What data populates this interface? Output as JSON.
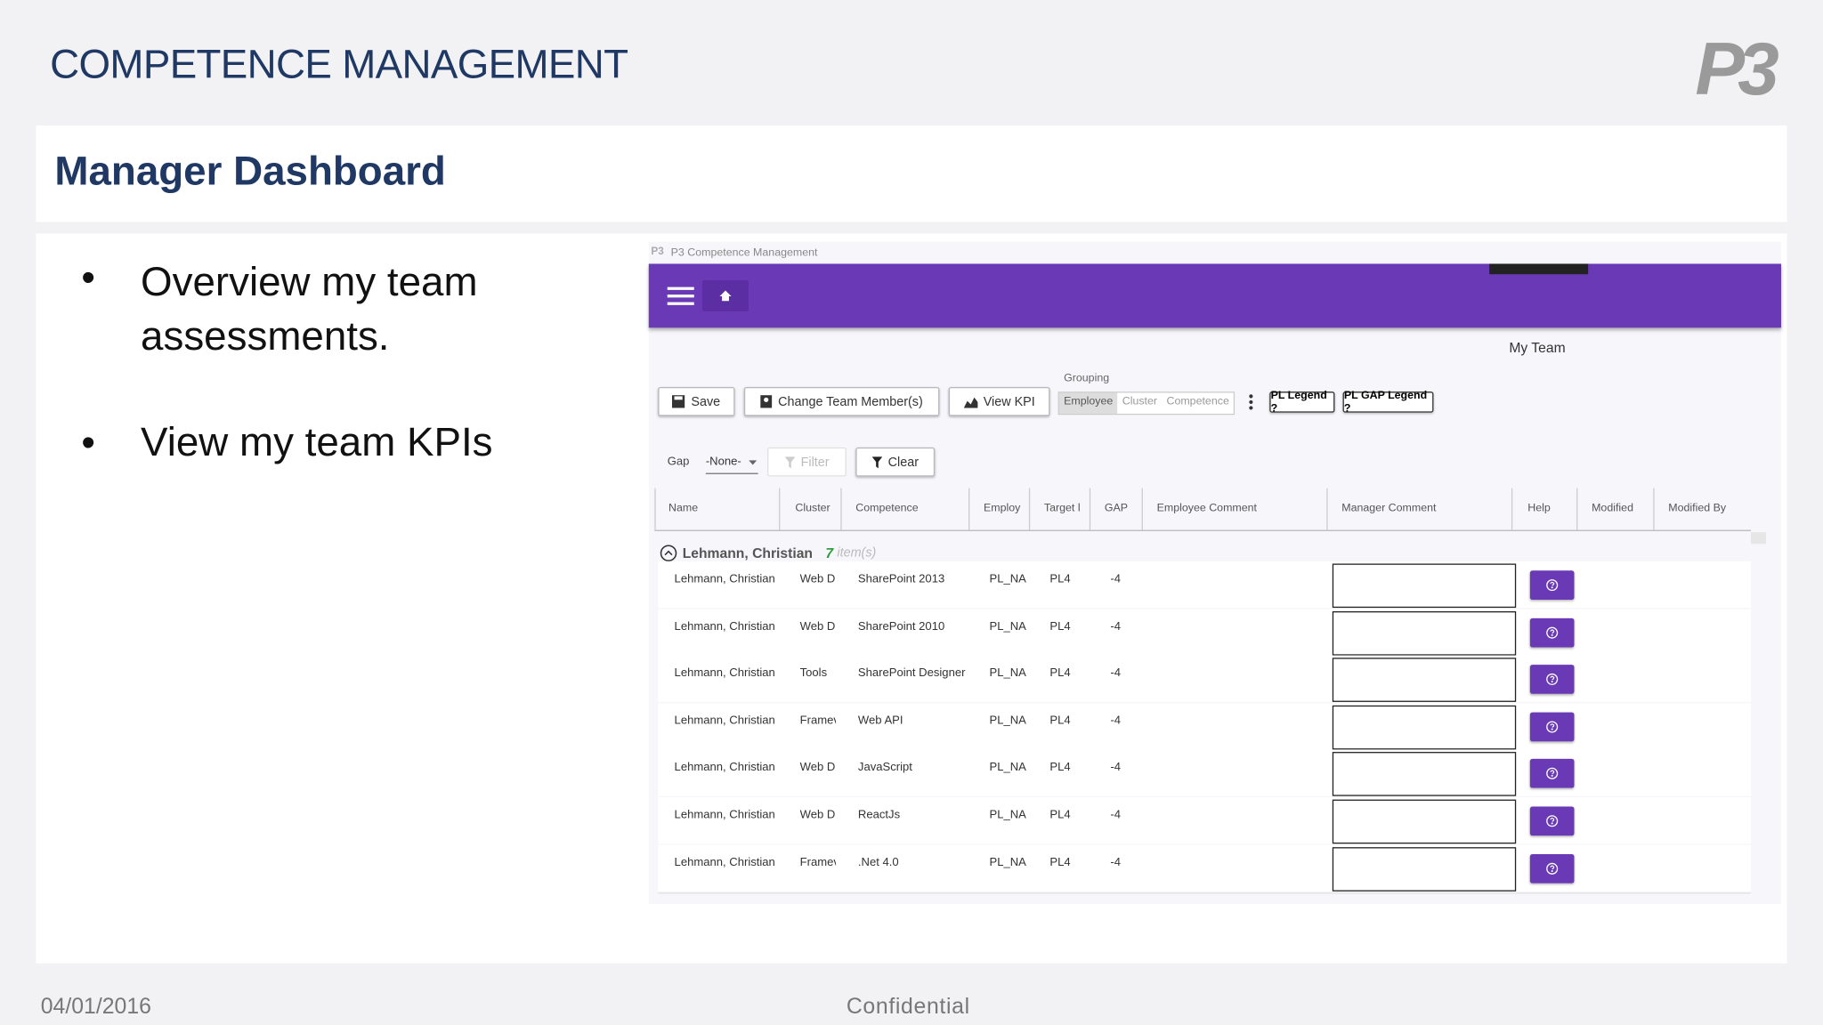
{
  "header": {
    "title": "COMPETENCE MANAGEMENT",
    "logo": "P3"
  },
  "section_title": "Manager Dashboard",
  "bullets": [
    "Overview my team assessments.",
    "View my team KPIs"
  ],
  "app": {
    "window_title": "P3 Competence Management",
    "page_title": "My Team",
    "toolbar": {
      "save": "Save",
      "change": "Change Team Member(s)",
      "view_kpi": "View KPI",
      "grouping_label": "Grouping",
      "grouping_options": [
        "Employee",
        "Cluster",
        "Competence"
      ],
      "legends": [
        "PL Legend ?",
        "PL GAP Legend ?"
      ]
    },
    "filter": {
      "label": "Gap",
      "value": "-None-",
      "filter": "Filter",
      "clear": "Clear"
    },
    "columns": [
      "Name",
      "Cluster",
      "Competence",
      "Employ",
      "Target l",
      "GAP",
      "Employee Comment",
      "Manager Comment",
      "Help",
      "Modified",
      "Modified By"
    ],
    "group": {
      "name": "Lehmann, Christian",
      "count": 7,
      "unit": "item(s)"
    },
    "rows": [
      [
        "Lehmann, Christian",
        "Web D",
        "SharePoint 2013",
        "PL_NA",
        "PL4",
        -4
      ],
      [
        "Lehmann, Christian",
        "Web D",
        "SharePoint 2010",
        "PL_NA",
        "PL4",
        -4
      ],
      [
        "Lehmann, Christian",
        "Tools",
        "SharePoint Designer",
        "PL_NA",
        "PL4",
        -4
      ],
      [
        "Lehmann, Christian",
        "Framev",
        "Web API",
        "PL_NA",
        "PL4",
        -4
      ],
      [
        "Lehmann, Christian",
        "Web D",
        "JavaScript",
        "PL_NA",
        "PL4",
        -4
      ],
      [
        "Lehmann, Christian",
        "Web D",
        "ReactJs",
        "PL_NA",
        "PL4",
        -4
      ],
      [
        "Lehmann, Christian",
        "Framev",
        ".Net 4.0",
        "PL_NA",
        "PL4",
        -4
      ]
    ]
  },
  "footer": {
    "date": "04/01/2016",
    "label": "Confidential"
  }
}
